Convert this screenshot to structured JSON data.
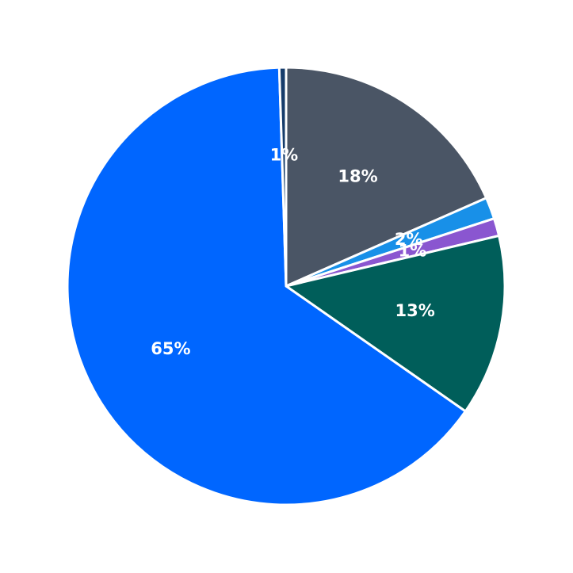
{
  "chart_data": {
    "type": "pie",
    "start_angle_deg": 90,
    "direction": "clockwise",
    "slices": [
      {
        "value": 18.4,
        "label": "18%",
        "color": "#4a5565"
      },
      {
        "value": 1.6,
        "label": "2%",
        "color": "#1890e8"
      },
      {
        "value": 1.3,
        "label": "1%",
        "color": "#8a56d0"
      },
      {
        "value": 13.4,
        "label": "13%",
        "color": "#005e5a"
      },
      {
        "value": 64.8,
        "label": "65%",
        "color": "#0066ff"
      },
      {
        "value": 0.5,
        "label": "1%",
        "color": "#163c6b"
      }
    ]
  }
}
